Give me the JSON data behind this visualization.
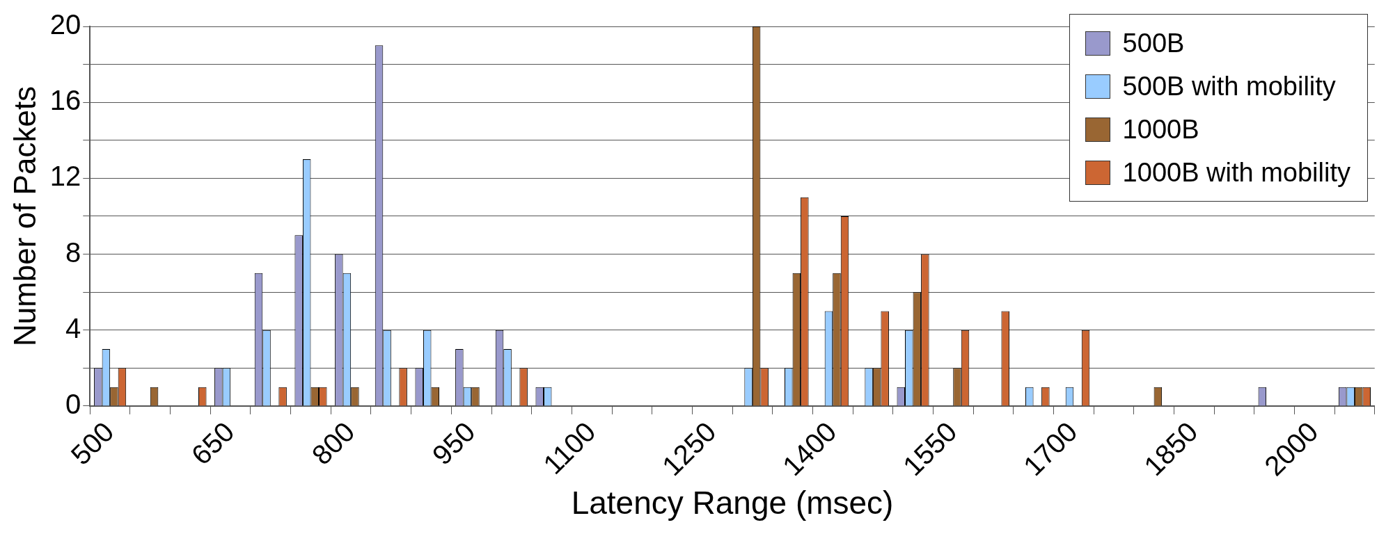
{
  "chart_data": {
    "type": "bar",
    "xlabel": "Latency Range (msec)",
    "ylabel": "Number of Packets",
    "categories": [
      "500",
      null,
      null,
      "650",
      null,
      null,
      "800",
      null,
      null,
      "950",
      null,
      null,
      "1100",
      null,
      null,
      "1250",
      null,
      null,
      "1400",
      null,
      null,
      "1550",
      null,
      null,
      "1700",
      null,
      null,
      "1850",
      null,
      null,
      "2000",
      null
    ],
    "series": [
      {
        "name": "500B",
        "color": "#9999cc",
        "values": [
          2,
          0,
          0,
          2,
          7,
          9,
          8,
          19,
          2,
          3,
          4,
          1,
          0,
          0,
          0,
          0,
          0,
          0,
          0,
          0,
          1,
          0,
          0,
          0,
          0,
          0,
          0,
          0,
          0,
          1,
          0,
          1
        ]
      },
      {
        "name": "500B with mobility",
        "color": "#99ccff",
        "values": [
          3,
          0,
          0,
          2,
          4,
          13,
          7,
          4,
          4,
          1,
          3,
          1,
          0,
          0,
          0,
          0,
          2,
          2,
          5,
          2,
          4,
          0,
          0,
          1,
          1,
          0,
          0,
          0,
          0,
          0,
          0,
          1
        ]
      },
      {
        "name": "1000B",
        "color": "#996633",
        "values": [
          1,
          1,
          0,
          0,
          0,
          1,
          1,
          0,
          1,
          1,
          0,
          0,
          0,
          0,
          0,
          0,
          20,
          7,
          7,
          2,
          6,
          2,
          0,
          0,
          0,
          0,
          1,
          0,
          0,
          0,
          0,
          1
        ]
      },
      {
        "name": "1000B with mobility",
        "color": "#cc6633",
        "values": [
          2,
          0,
          1,
          0,
          1,
          1,
          0,
          2,
          0,
          0,
          2,
          0,
          0,
          0,
          0,
          0,
          2,
          11,
          10,
          5,
          8,
          4,
          5,
          1,
          4,
          0,
          0,
          0,
          0,
          0,
          0,
          1
        ]
      }
    ],
    "ylim": [
      0,
      20
    ],
    "yticks": [
      0,
      {
        "value": 2,
        "label": null
      },
      4,
      {
        "value": 6,
        "label": null
      },
      8,
      {
        "value": 10,
        "label": null
      },
      12,
      {
        "value": 14,
        "label": null
      },
      16,
      {
        "value": 18,
        "label": null
      },
      20
    ],
    "grid": "y",
    "legend": "top right"
  }
}
